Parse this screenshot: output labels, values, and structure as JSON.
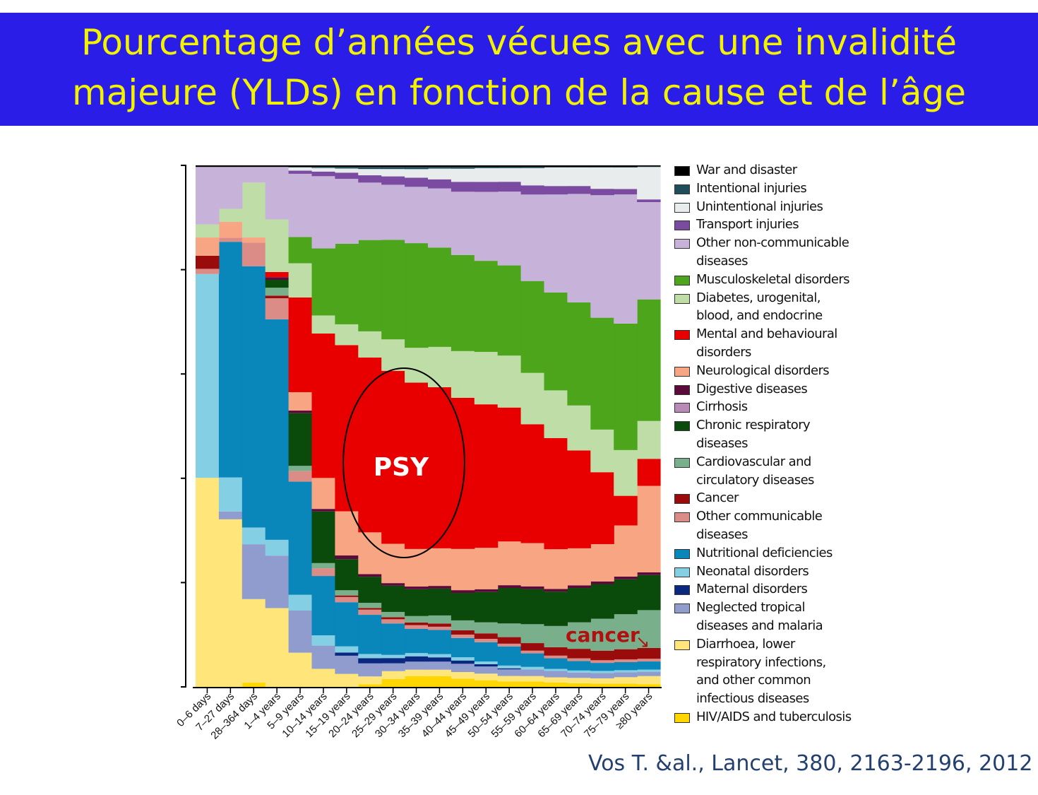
{
  "title": {
    "line1": "Pourcentage d’années vécues avec une invalidité",
    "line2": "majeure (YLDs) en fonction de la cause et de l’âge"
  },
  "citation": "Vos T. &al., Lancet, 380, 2163-2196, 2012",
  "colors": {
    "banner": "#2b1de8",
    "title_text": "#f3f300",
    "citation_text": "#24406e",
    "annotation_text": "#b01010"
  },
  "annotations": {
    "psy": "PSY",
    "cancer": "cancer",
    "cancer_arrow": "↘"
  },
  "legend": [
    {
      "lines": [
        "War and disaster"
      ],
      "color": "#000000"
    },
    {
      "lines": [
        "Intentional injuries"
      ],
      "color": "#1f4e5a"
    },
    {
      "lines": [
        "Unintentional injuries"
      ],
      "color": "#e8ecec"
    },
    {
      "lines": [
        "Transport injuries"
      ],
      "color": "#7a4ba0"
    },
    {
      "lines": [
        "Other non-communicable",
        "diseases"
      ],
      "color": "#c7b3da"
    },
    {
      "lines": [
        "Musculoskeletal disorders"
      ],
      "color": "#4da51c"
    },
    {
      "lines": [
        "Diabetes, urogenital,",
        "blood, and endocrine"
      ],
      "color": "#bfdda6"
    },
    {
      "lines": [
        "Mental and behavioural",
        "disorders"
      ],
      "color": "#e80000"
    },
    {
      "lines": [
        "Neurological disorders"
      ],
      "color": "#f7a583"
    },
    {
      "lines": [
        "Digestive diseases"
      ],
      "color": "#5c0a3a"
    },
    {
      "lines": [
        "Cirrhosis"
      ],
      "color": "#b98ab5"
    },
    {
      "lines": [
        "Chronic respiratory",
        "diseases"
      ],
      "color": "#0a4a0a"
    },
    {
      "lines": [
        "Cardiovascular and",
        "circulatory diseases"
      ],
      "color": "#7aaf8c"
    },
    {
      "lines": [
        "Cancer"
      ],
      "color": "#9a0c0c"
    },
    {
      "lines": [
        "Other communicable",
        "diseases"
      ],
      "color": "#dc8c86"
    },
    {
      "lines": [
        "Nutritional deficiencies"
      ],
      "color": "#0986ba"
    },
    {
      "lines": [
        "Neonatal disorders"
      ],
      "color": "#84cfe4"
    },
    {
      "lines": [
        "Maternal disorders"
      ],
      "color": "#0b2880"
    },
    {
      "lines": [
        "Neglected tropical",
        "diseases and malaria"
      ],
      "color": "#8f9ccd"
    },
    {
      "lines": [
        "Diarrhoea, lower",
        "respiratory infections,",
        "and other common",
        "infectious diseases"
      ],
      "color": "#ffe57a"
    },
    {
      "lines": [
        "HIV/AIDS and tuberculosis"
      ],
      "color": "#ffd600"
    }
  ],
  "chart_data": {
    "type": "area",
    "stacking": "percent",
    "ylim": [
      0,
      100
    ],
    "ytick_count": 6,
    "grid": false,
    "legend_position": "right",
    "x": [
      "0–6 days",
      "7–27 days",
      "28–364 days",
      "1–4 years",
      "5–9 years",
      "10–14 years",
      "15–19 years",
      "20–24 years",
      "25–29 years",
      "30–34 years",
      "35–39 years",
      "40–44 years",
      "45–49 years",
      "50–54 years",
      "55–59 years",
      "60–64 years",
      "65–69 years",
      "70–74 years",
      "75–79 years",
      "≥80 years"
    ],
    "series": [
      {
        "name": "HIV/AIDS and tuberculosis",
        "color": "#ffd600",
        "values": [
          0,
          0,
          0.8,
          0,
          0,
          0,
          0,
          0.5,
          1.5,
          2,
          2,
          1.5,
          1.2,
          1,
          1,
          0.8,
          0.7,
          0.6,
          0.6,
          0.5
        ]
      },
      {
        "name": "Diarrhoea, lower respiratory infections, and other common infectious diseases",
        "color": "#ffe57a",
        "values": [
          40,
          32,
          16,
          15,
          6.5,
          3.5,
          2.5,
          1.5,
          1.5,
          1.2,
          1.2,
          1.2,
          1.2,
          1,
          1,
          1,
          1,
          1,
          1.2,
          1.5
        ]
      },
      {
        "name": "Neglected tropical diseases and malaria",
        "color": "#8f9ccd",
        "values": [
          0,
          1.5,
          10.5,
          10,
          8,
          4.5,
          3.5,
          2.5,
          1.5,
          1.5,
          1.5,
          1.5,
          1.3,
          1.2,
          1.2,
          1.2,
          1,
          1,
          0.9,
          0.8
        ]
      },
      {
        "name": "Maternal disorders",
        "color": "#0b2880",
        "values": [
          0,
          0,
          0,
          0,
          0,
          0,
          0.6,
          1,
          1,
          1,
          0.8,
          0.6,
          0.4,
          0.2,
          0,
          0,
          0,
          0,
          0,
          0
        ]
      },
      {
        "name": "Neonatal disorders",
        "color": "#84cfe4",
        "values": [
          39,
          6.5,
          3.2,
          3,
          3,
          2,
          1.2,
          0.8,
          0.6,
          0.6,
          0.6,
          0.6,
          0.5,
          0.5,
          0.5,
          0.4,
          0.4,
          0.4,
          0.4,
          0.4
        ]
      },
      {
        "name": "Nutritional deficiencies",
        "color": "#0986ba",
        "values": [
          0,
          45,
          50,
          42,
          21.5,
          11.5,
          8.5,
          7.5,
          6,
          4.5,
          4.5,
          3.5,
          3.5,
          3.5,
          2.5,
          2,
          1.8,
          1.5,
          1.5,
          1.5
        ]
      },
      {
        "name": "Other communicable diseases",
        "color": "#dc8c86",
        "values": [
          1,
          0.8,
          4.5,
          4,
          2,
          1.5,
          1,
          1,
          0.8,
          0.7,
          0.6,
          0.6,
          0.6,
          0.5,
          0.5,
          0.5,
          0.5,
          0.5,
          0.5,
          0.5
        ]
      },
      {
        "name": "Cancer",
        "color": "#9a0c0c",
        "values": [
          2.5,
          0,
          0,
          0.5,
          0,
          0,
          0.3,
          0.3,
          0.4,
          0.5,
          0.6,
          0.8,
          1,
          1.2,
          1.4,
          1.6,
          1.8,
          1.8,
          1.9,
          2
        ]
      },
      {
        "name": "Cardiovascular and circulatory diseases",
        "color": "#7aaf8c",
        "values": [
          0,
          0,
          0,
          1.5,
          1,
          1,
          1,
          1,
          1,
          1.2,
          1.5,
          1.8,
          2,
          2.5,
          3.5,
          4,
          5,
          6,
          6.5,
          7
        ]
      },
      {
        "name": "Chronic respiratory diseases",
        "color": "#0a4a0a",
        "values": [
          0,
          0,
          0,
          1.5,
          10,
          10,
          6,
          5,
          5,
          5,
          5,
          5,
          5.5,
          6.5,
          6.5,
          6.5,
          6.5,
          6.5,
          6.5,
          6.5
        ]
      },
      {
        "name": "Cirrhosis",
        "color": "#b98ab5",
        "values": [
          0,
          0,
          0,
          0,
          0,
          0,
          0,
          0,
          0,
          0,
          0,
          0,
          0,
          0,
          0,
          0,
          0,
          0,
          0,
          0
        ]
      },
      {
        "name": "Digestive diseases",
        "color": "#5c0a3a",
        "values": [
          0,
          0,
          0,
          0.5,
          0.5,
          0.5,
          0.7,
          0.5,
          0.5,
          0.5,
          0.5,
          0.5,
          0.5,
          0.5,
          0.5,
          0.5,
          0.5,
          0.5,
          0.5,
          0.5
        ]
      },
      {
        "name": "Neurological disorders",
        "color": "#f7a583",
        "values": [
          3.5,
          3,
          1,
          0,
          3.5,
          6,
          8.5,
          8,
          7.5,
          7,
          7,
          7.5,
          7.5,
          8,
          8,
          7.5,
          7,
          7,
          9.5,
          16
        ]
      },
      {
        "name": "Mental and behavioural disorders",
        "color": "#e80000",
        "values": [
          0,
          0,
          0,
          1,
          18,
          28,
          32,
          33.5,
          33,
          31,
          30,
          27.5,
          26,
          24.5,
          22,
          21,
          18.5,
          13.5,
          5.5,
          5
        ]
      },
      {
        "name": "Diabetes, urogenital, blood, and endocrine",
        "color": "#bfdda6",
        "values": [
          2.5,
          2.5,
          10.5,
          10,
          6.5,
          3.5,
          4,
          5,
          6,
          6.5,
          7.5,
          8.5,
          9.5,
          9.5,
          9.5,
          9,
          8.5,
          8,
          8.5,
          7
        ]
      },
      {
        "name": "Musculoskeletal disorders",
        "color": "#4da51c",
        "values": [
          0,
          0,
          0,
          0,
          5,
          13,
          15.5,
          17.5,
          19,
          19.5,
          18.5,
          17.5,
          16.5,
          16.5,
          17,
          18.5,
          19.5,
          21,
          23.5,
          22.5
        ]
      },
      {
        "name": "Other non-communicable diseases",
        "color": "#c7b3da",
        "values": [
          11,
          8,
          3,
          10,
          12,
          14,
          12.5,
          11,
          10.5,
          10.5,
          11,
          11.5,
          12.5,
          13.5,
          16,
          18.5,
          20.5,
          23,
          24,
          18
        ]
      },
      {
        "name": "Transport injuries",
        "color": "#7a4ba0",
        "values": [
          0,
          0,
          0,
          0,
          0.6,
          0.9,
          1.2,
          1.4,
          1.6,
          1.7,
          1.7,
          1.8,
          1.8,
          1.8,
          1.7,
          1.6,
          1.5,
          1.2,
          1,
          0.5
        ]
      },
      {
        "name": "Unintentional injuries",
        "color": "#e8ecec",
        "values": [
          0,
          0,
          0,
          0,
          0.6,
          0.7,
          0.8,
          1.2,
          1.4,
          1.6,
          2,
          2.4,
          2.5,
          2.5,
          3.2,
          3.5,
          3.5,
          4,
          4,
          6
        ]
      },
      {
        "name": "Intentional injuries",
        "color": "#1f4e5a",
        "values": [
          0,
          0,
          0,
          0,
          0.1,
          0.2,
          0.3,
          0.4,
          0.4,
          0.4,
          0.3,
          0.3,
          0.2,
          0.2,
          0.2,
          0.1,
          0.1,
          0.1,
          0.1,
          0.1
        ]
      },
      {
        "name": "War and disaster",
        "color": "#000000",
        "values": [
          0.3,
          0.3,
          0.3,
          0.3,
          0.3,
          0.3,
          0.3,
          0.3,
          0.3,
          0.3,
          0.3,
          0.3,
          0.3,
          0.3,
          0.3,
          0.3,
          0.3,
          0.3,
          0.3,
          0.2
        ]
      }
    ]
  }
}
